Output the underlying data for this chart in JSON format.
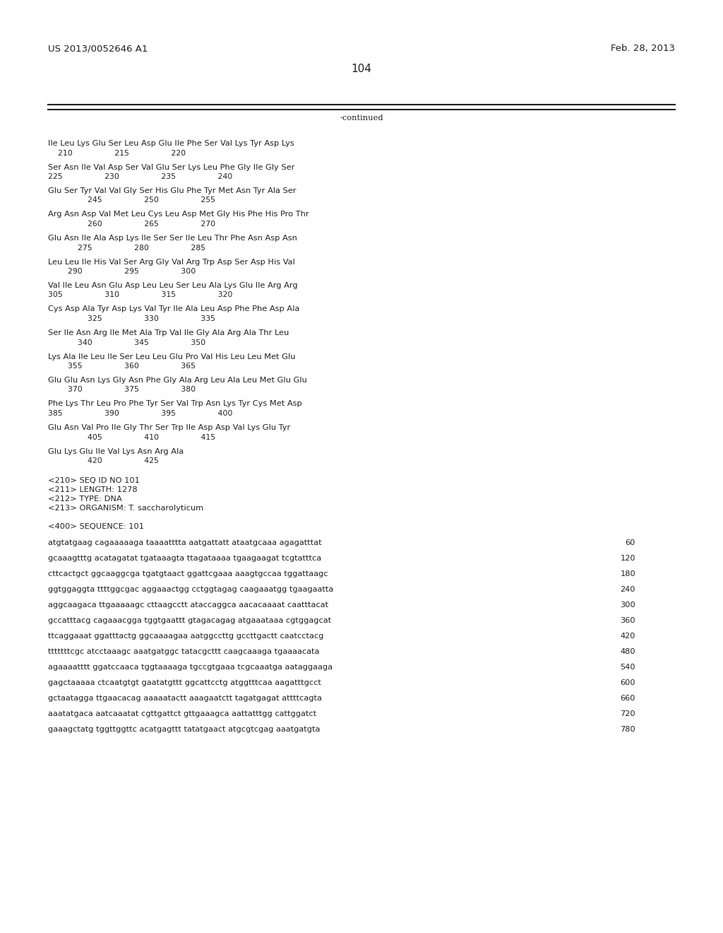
{
  "header_left": "US 2013/0052646 A1",
  "header_right": "Feb. 28, 2013",
  "page_number": "104",
  "continued_label": "-continued",
  "background_color": "#ffffff",
  "text_color": "#231f20",
  "header_fontsize": 9.5,
  "page_num_fontsize": 11,
  "body_fontsize": 8.2,
  "num_fontsize": 7.8,
  "aa_lines": [
    {
      "seq": "Ile Leu Lys Glu Ser Leu Asp Glu Ile Phe Ser Val Lys Tyr Asp Lys",
      "nums": "    210                 215                 220"
    },
    {
      "seq": "Ser Asn Ile Val Asp Ser Val Glu Ser Lys Leu Phe Gly Ile Gly Ser",
      "nums": "225                 230                 235                 240"
    },
    {
      "seq": "Glu Ser Tyr Val Val Gly Ser His Glu Phe Tyr Met Asn Tyr Ala Ser",
      "nums": "                245                 250                 255"
    },
    {
      "seq": "Arg Asn Asp Val Met Leu Cys Leu Asp Met Gly His Phe His Pro Thr",
      "nums": "                260                 265                 270"
    },
    {
      "seq": "Glu Asn Ile Ala Asp Lys Ile Ser Ser Ile Leu Thr Phe Asn Asp Asn",
      "nums": "            275                 280                 285"
    },
    {
      "seq": "Leu Leu Ile His Val Ser Arg Gly Val Arg Trp Asp Ser Asp His Val",
      "nums": "        290                 295                 300"
    },
    {
      "seq": "Val Ile Leu Asn Glu Asp Leu Leu Ser Leu Ala Lys Glu Ile Arg Arg",
      "nums": "305                 310                 315                 320"
    },
    {
      "seq": "Cys Asp Ala Tyr Asp Lys Val Tyr Ile Ala Leu Asp Phe Phe Asp Ala",
      "nums": "                325                 330                 335"
    },
    {
      "seq": "Ser Ile Asn Arg Ile Met Ala Trp Val Ile Gly Ala Arg Ala Thr Leu",
      "nums": "            340                 345                 350"
    },
    {
      "seq": "Lys Ala Ile Leu Ile Ser Leu Leu Glu Pro Val His Leu Leu Met Glu",
      "nums": "        355                 360                 365"
    },
    {
      "seq": "Glu Glu Asn Lys Gly Asn Phe Gly Ala Arg Leu Ala Leu Met Glu Glu",
      "nums": "        370                 375                 380"
    },
    {
      "seq": "Phe Lys Thr Leu Pro Phe Tyr Ser Val Trp Asn Lys Tyr Cys Met Asp",
      "nums": "385                 390                 395                 400"
    },
    {
      "seq": "Glu Asn Val Pro Ile Gly Thr Ser Trp Ile Asp Asp Val Lys Glu Tyr",
      "nums": "                405                 410                 415"
    },
    {
      "seq": "Glu Lys Glu Ile Val Lys Asn Arg Ala",
      "nums": "                420                 425"
    }
  ],
  "meta_lines": [
    "<210> SEQ ID NO 101",
    "<211> LENGTH: 1278",
    "<212> TYPE: DNA",
    "<213> ORGANISM: T. saccharolyticum",
    "",
    "<400> SEQUENCE: 101"
  ],
  "dna_lines": [
    {
      "seq": "atgtatgaag cagaaaaaga taaaatttta aatgattatt ataatgcaaa agagatttat",
      "num": "60"
    },
    {
      "seq": "gcaaagtttg acatagatat tgataaagta ttagataaaa tgaagaagat tcgtatttca",
      "num": "120"
    },
    {
      "seq": "cttcactgct ggcaaggcga tgatgtaact ggattcgaaa aaagtgccaa tggattaagc",
      "num": "180"
    },
    {
      "seq": "ggtggaggta ttttggcgac aggaaactgg cctggtagag caagaaatgg tgaagaatta",
      "num": "240"
    },
    {
      "seq": "aggcaagaca ttgaaaaagc cttaagcctt ataccaggca aacacaaaat caatttacat",
      "num": "300"
    },
    {
      "seq": "gccatttacg cagaaacgga tggtgaattt gtagacagag atgaaataaa cgtggagcat",
      "num": "360"
    },
    {
      "seq": "ttcaggaaat ggatttactg ggcaaaagaa aatggccttg gccttgactt caatcctacg",
      "num": "420"
    },
    {
      "seq": "tttttttcgc atcctaaagc aaatgatggc tatacgcttt caagcaaaga tgaaaacata",
      "num": "480"
    },
    {
      "seq": "agaaaatttt ggatccaaca tggtaaaaga tgccgtgaaa tcgcaaatga aataggaaga",
      "num": "540"
    },
    {
      "seq": "gagctaaaaa ctcaatgtgt gaatatgttt ggcattcctg atggtttcaa aagatttgcct",
      "num": "600"
    },
    {
      "seq": "gctaatagga ttgaacacag aaaaatactt aaagaatctt tagatgagat attttcagta",
      "num": "660"
    },
    {
      "seq": "aaatatgaca aatcaaatat cgttgattct gttgaaagca aattatttgg cattggatct",
      "num": "720"
    },
    {
      "seq": "gaaagctatg tggttggttc acatgagttt tatatgaact atgcgtcgag aaatgatgta",
      "num": "780"
    }
  ]
}
